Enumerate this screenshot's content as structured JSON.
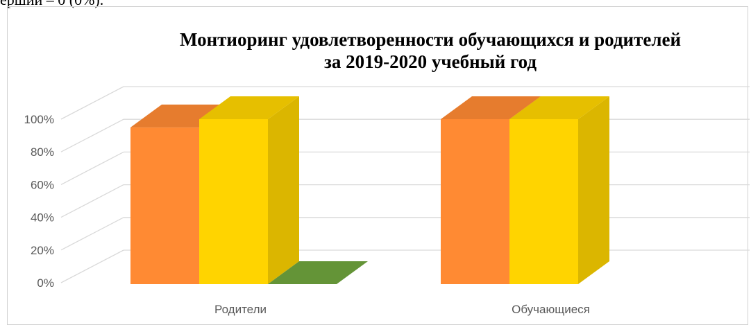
{
  "page": {
    "top_fragment": "ерший – 0 (0%)."
  },
  "chart_data": {
    "type": "bar",
    "title": "Монтиоринг удовлетворенности обучающихся и родителей",
    "subtitle": "за 2019-2020 учебный год",
    "categories": [
      "Родители",
      "Обучающиеся"
    ],
    "series": [
      {
        "color": "#FF8A33",
        "values": [
          95,
          100
        ]
      },
      {
        "color": "#FFD400",
        "values": [
          100,
          100
        ]
      },
      {
        "color": "#6FA43D",
        "values": [
          0,
          null
        ]
      }
    ],
    "ylim": [
      0,
      100
    ],
    "yticks": [
      "0%",
      "20%",
      "40%",
      "60%",
      "80%",
      "100%"
    ],
    "grid": true,
    "legend": "none",
    "projection": "3d"
  }
}
